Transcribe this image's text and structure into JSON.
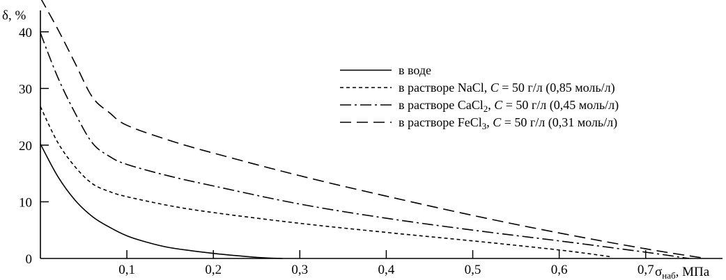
{
  "chart_data": {
    "type": "line",
    "xlabel": "σнаб, МПа",
    "xlabel_symbol": "σ",
    "xlabel_subscript": "наб",
    "xlabel_unit": ", МПа",
    "ylabel": "δ, %",
    "xlim": [
      0,
      0.78
    ],
    "ylim": [
      0,
      45
    ],
    "x_ticks": [
      {
        "value": 0.1,
        "label": "0,1"
      },
      {
        "value": 0.2,
        "label": "0,2"
      },
      {
        "value": 0.3,
        "label": "0,3"
      },
      {
        "value": 0.4,
        "label": "0,4"
      },
      {
        "value": 0.5,
        "label": "0,5"
      },
      {
        "value": 0.6,
        "label": "0,6"
      },
      {
        "value": 0.7,
        "label": "0,7"
      }
    ],
    "y_ticks": [
      {
        "value": 0,
        "label": "0"
      },
      {
        "value": 10,
        "label": "10"
      },
      {
        "value": 20,
        "label": "20"
      },
      {
        "value": 30,
        "label": "30"
      },
      {
        "value": 40,
        "label": "40"
      }
    ],
    "grid": false,
    "legend_position": "top-right",
    "series": [
      {
        "name": "в воде",
        "style": "solid",
        "points": [
          [
            0,
            20.2
          ],
          [
            0.02,
            14.5
          ],
          [
            0.04,
            10.3
          ],
          [
            0.06,
            7.4
          ],
          [
            0.08,
            5.5
          ],
          [
            0.1,
            4.0
          ],
          [
            0.12,
            3.0
          ],
          [
            0.15,
            1.9
          ],
          [
            0.2,
            0.9
          ],
          [
            0.25,
            0.2
          ],
          [
            0.28,
            0
          ]
        ]
      },
      {
        "name": "в растворе NaCl, C = 50 г/л (0,85 моль/л)",
        "legend_prefix": "в растворе NaCl, ",
        "legend_suffix": " = 50 г/л (0,85 моль/л)",
        "style": "dotted",
        "points": [
          [
            0,
            26.8
          ],
          [
            0.02,
            20.5
          ],
          [
            0.04,
            16.2
          ],
          [
            0.06,
            13.2
          ],
          [
            0.08,
            11.8
          ],
          [
            0.1,
            10.9
          ],
          [
            0.15,
            9.3
          ],
          [
            0.2,
            8.1
          ],
          [
            0.3,
            6.2
          ],
          [
            0.4,
            4.6
          ],
          [
            0.5,
            3.1
          ],
          [
            0.6,
            1.5
          ],
          [
            0.66,
            0.3
          ]
        ]
      },
      {
        "name": "в растворе CaCl2, C = 50 г/л (0,45 моль/л)",
        "legend_prefix": "в растворе CaCl",
        "legend_sub": "2",
        "legend_comma": ", ",
        "legend_suffix": " = 50 г/л (0,45 моль/л)",
        "style": "dash-dot",
        "points": [
          [
            0,
            39.8
          ],
          [
            0.02,
            32.0
          ],
          [
            0.04,
            25.7
          ],
          [
            0.06,
            20.4
          ],
          [
            0.08,
            18.0
          ],
          [
            0.1,
            16.6
          ],
          [
            0.15,
            14.5
          ],
          [
            0.2,
            12.8
          ],
          [
            0.3,
            9.6
          ],
          [
            0.4,
            7.1
          ],
          [
            0.5,
            5.0
          ],
          [
            0.6,
            3.1
          ],
          [
            0.7,
            1.1
          ],
          [
            0.75,
            0
          ]
        ]
      },
      {
        "name": "в растворе FeCl3, C = 50 г/л (0,31 моль/л)",
        "legend_prefix": "в растворе FeCl",
        "legend_sub": "3",
        "legend_comma": ", ",
        "legend_suffix": " = 50 г/л (0,31 моль/л)",
        "style": "dashed",
        "points": [
          [
            0,
            46.0
          ],
          [
            0.02,
            40.5
          ],
          [
            0.04,
            34.5
          ],
          [
            0.06,
            28.5
          ],
          [
            0.08,
            25.7
          ],
          [
            0.1,
            23.5
          ],
          [
            0.15,
            20.8
          ],
          [
            0.2,
            18.6
          ],
          [
            0.3,
            14.6
          ],
          [
            0.4,
            11.0
          ],
          [
            0.5,
            7.6
          ],
          [
            0.6,
            4.5
          ],
          [
            0.7,
            1.7
          ],
          [
            0.77,
            0
          ]
        ]
      }
    ],
    "legend_symbol_C": "C"
  }
}
